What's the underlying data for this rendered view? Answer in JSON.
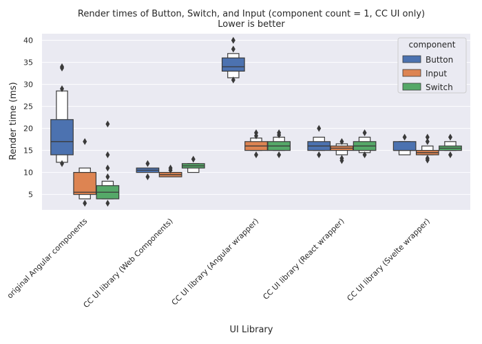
{
  "chart_data": {
    "type": "boxen",
    "title": "Render times of Button, Switch, and Input (component count = 1, CC UI only)",
    "subtitle": "Lower is better",
    "xlabel": "UI Library",
    "ylabel": "Render time (ms)",
    "ylim": [
      1.5,
      41.5
    ],
    "yticks": [
      5,
      10,
      15,
      20,
      25,
      30,
      35,
      40
    ],
    "grid": true,
    "legend": {
      "title": "component",
      "placement": "top-right",
      "entries": [
        "Button",
        "Input",
        "Switch"
      ]
    },
    "categories": [
      "original Angular components",
      "CC UI library (Web Components)",
      "CC UI library (Angular wrapper)",
      "CC UI library (React wrapper)",
      "CC UI library (Svelte wrapper)"
    ],
    "series": [
      {
        "name": "Button",
        "color": "#4c72b0",
        "groups": [
          {
            "median": 17,
            "boxes": [
              [
                14,
                22
              ],
              [
                12.3,
                28.5
              ]
            ],
            "outliers": [
              12,
              29,
              33.7,
              34
            ]
          },
          {
            "median": 10.5,
            "boxes": [
              [
                10,
                11
              ]
            ],
            "outliers": [
              9,
              12
            ]
          },
          {
            "median": 34,
            "boxes": [
              [
                33,
                36
              ],
              [
                31.5,
                37
              ]
            ],
            "outliers": [
              31,
              38,
              40
            ]
          },
          {
            "median": 16,
            "boxes": [
              [
                15,
                17
              ],
              [
                15,
                18
              ]
            ],
            "outliers": [
              14,
              20
            ]
          },
          {
            "median": 15,
            "boxes": [
              [
                15,
                17
              ],
              [
                14,
                17
              ]
            ],
            "outliers": [
              18
            ]
          }
        ]
      },
      {
        "name": "Input",
        "color": "#dd8452",
        "groups": [
          {
            "median": 5.5,
            "boxes": [
              [
                5,
                10
              ],
              [
                4,
                11
              ]
            ],
            "outliers": [
              3,
              17
            ]
          },
          {
            "median": 9.5,
            "boxes": [
              [
                9,
                10
              ]
            ],
            "outliers": [
              10.5,
              11
            ]
          },
          {
            "median": 16,
            "boxes": [
              [
                15,
                17
              ],
              [
                15,
                17.8
              ]
            ],
            "outliers": [
              14,
              18.3,
              19
            ]
          },
          {
            "median": 15.5,
            "boxes": [
              [
                15,
                16
              ],
              [
                14,
                16.5
              ]
            ],
            "outliers": [
              12.7,
              13.2,
              17
            ]
          },
          {
            "median": 14.5,
            "boxes": [
              [
                14,
                15
              ],
              [
                14,
                16
              ]
            ],
            "outliers": [
              12.8,
              13.2,
              17,
              18
            ]
          }
        ]
      },
      {
        "name": "Switch",
        "color": "#55a868",
        "groups": [
          {
            "median": 5.5,
            "boxes": [
              [
                4,
                7
              ],
              [
                4,
                8
              ]
            ],
            "outliers": [
              3,
              9,
              11,
              14,
              21
            ]
          },
          {
            "median": 11.5,
            "boxes": [
              [
                11,
                12
              ],
              [
                10,
                12
              ]
            ],
            "outliers": [
              13
            ]
          },
          {
            "median": 16,
            "boxes": [
              [
                15,
                17
              ],
              [
                15,
                18
              ]
            ],
            "outliers": [
              14,
              18.5,
              19
            ]
          },
          {
            "median": 16,
            "boxes": [
              [
                15,
                17
              ],
              [
                14.5,
                18
              ]
            ],
            "outliers": [
              14,
              19
            ]
          },
          {
            "median": 15.5,
            "boxes": [
              [
                15,
                16
              ],
              [
                15,
                17
              ]
            ],
            "outliers": [
              14,
              18
            ]
          }
        ]
      }
    ]
  }
}
